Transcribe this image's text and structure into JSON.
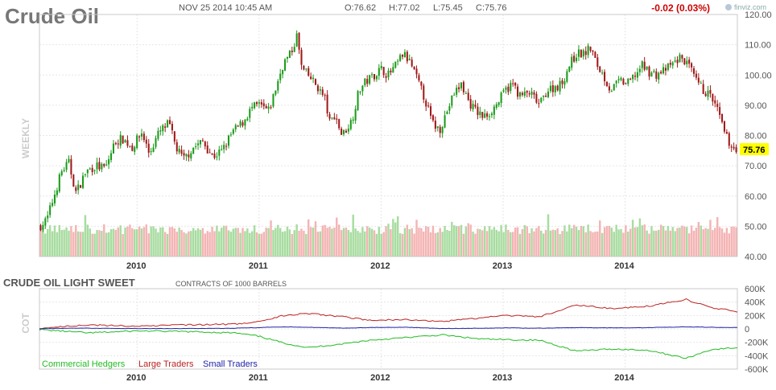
{
  "header": {
    "title": "Crude Oil",
    "datetime": "NOV 25 2014 10:45 AM",
    "open": "O:76.62",
    "high": "H:77.02",
    "low": "L:75.45",
    "close": "C:75.76",
    "change": "-0.02 (0.03%)",
    "logo_text": "finviz.com"
  },
  "side_labels": {
    "price_panel": "WEEKLY",
    "cot_panel": "COT"
  },
  "cot_header": {
    "title": "CRUDE OIL LIGHT SWEET",
    "subtitle": "CONTRACTS OF 1000 BARRELS"
  },
  "current_price_label": "75.76",
  "colors": {
    "up_candle": "#1a9a1a",
    "down_candle": "#a01818",
    "up_volume": "#a8dca0",
    "down_volume": "#f4b4b4",
    "commercial": "#22bb22",
    "large": "#bb2222",
    "small": "#2222aa",
    "price_tag": "#ffff00",
    "change_text": "#cc0000"
  },
  "chart_data": [
    {
      "type": "candlestick",
      "name": "price",
      "ylim": [
        40,
        120
      ],
      "y_ticks": [
        "120.00",
        "110.00",
        "100.00",
        "90.00",
        "80.00",
        "70.00",
        "60.00",
        "50.00",
        "40.00"
      ],
      "x_labels": [
        "2010",
        "2011",
        "2012",
        "2013",
        "2014"
      ],
      "x_range": [
        2009.2,
        2014.92
      ],
      "price_anchors": [
        [
          2009.2,
          50
        ],
        [
          2009.26,
          52
        ],
        [
          2009.32,
          60
        ],
        [
          2009.38,
          68
        ],
        [
          2009.44,
          71
        ],
        [
          2009.5,
          61
        ],
        [
          2009.58,
          68
        ],
        [
          2009.66,
          70
        ],
        [
          2009.74,
          69
        ],
        [
          2009.82,
          78
        ],
        [
          2009.88,
          79
        ],
        [
          2009.96,
          76
        ],
        [
          2010.04,
          81
        ],
        [
          2010.1,
          74
        ],
        [
          2010.18,
          81
        ],
        [
          2010.26,
          84
        ],
        [
          2010.32,
          76
        ],
        [
          2010.38,
          72
        ],
        [
          2010.46,
          76
        ],
        [
          2010.54,
          78
        ],
        [
          2010.62,
          73
        ],
        [
          2010.7,
          75
        ],
        [
          2010.78,
          81
        ],
        [
          2010.86,
          84
        ],
        [
          2010.94,
          89
        ],
        [
          2011.0,
          90
        ],
        [
          2011.08,
          88
        ],
        [
          2011.14,
          96
        ],
        [
          2011.2,
          104
        ],
        [
          2011.26,
          107
        ],
        [
          2011.31,
          113
        ],
        [
          2011.35,
          102
        ],
        [
          2011.42,
          99
        ],
        [
          2011.48,
          96
        ],
        [
          2011.54,
          92
        ],
        [
          2011.58,
          84
        ],
        [
          2011.62,
          87
        ],
        [
          2011.68,
          80
        ],
        [
          2011.76,
          85
        ],
        [
          2011.82,
          95
        ],
        [
          2011.88,
          98
        ],
        [
          2011.94,
          100
        ],
        [
          2012.0,
          102
        ],
        [
          2012.06,
          100
        ],
        [
          2012.12,
          103
        ],
        [
          2012.18,
          107
        ],
        [
          2012.24,
          104
        ],
        [
          2012.3,
          98
        ],
        [
          2012.36,
          92
        ],
        [
          2012.42,
          84
        ],
        [
          2012.48,
          82
        ],
        [
          2012.54,
          88
        ],
        [
          2012.6,
          94
        ],
        [
          2012.66,
          97
        ],
        [
          2012.72,
          91
        ],
        [
          2012.78,
          88
        ],
        [
          2012.84,
          86
        ],
        [
          2012.9,
          88
        ],
        [
          2012.96,
          91
        ],
        [
          2013.02,
          95
        ],
        [
          2013.08,
          97
        ],
        [
          2013.14,
          93
        ],
        [
          2013.22,
          94
        ],
        [
          2013.3,
          90
        ],
        [
          2013.36,
          95
        ],
        [
          2013.42,
          96
        ],
        [
          2013.48,
          97
        ],
        [
          2013.54,
          103
        ],
        [
          2013.6,
          107
        ],
        [
          2013.66,
          107
        ],
        [
          2013.72,
          109
        ],
        [
          2013.76,
          104
        ],
        [
          2013.82,
          100
        ],
        [
          2013.88,
          95
        ],
        [
          2013.96,
          98
        ],
        [
          2014.02,
          97
        ],
        [
          2014.08,
          100
        ],
        [
          2014.14,
          103
        ],
        [
          2014.2,
          101
        ],
        [
          2014.26,
          100
        ],
        [
          2014.34,
          102
        ],
        [
          2014.4,
          104
        ],
        [
          2014.46,
          106
        ],
        [
          2014.52,
          103
        ],
        [
          2014.58,
          98
        ],
        [
          2014.64,
          95
        ],
        [
          2014.7,
          93
        ],
        [
          2014.76,
          88
        ],
        [
          2014.82,
          80
        ],
        [
          2014.88,
          76
        ],
        [
          2014.92,
          75.76
        ]
      ]
    },
    {
      "type": "line",
      "name": "cot",
      "title": "CRUDE OIL LIGHT SWEET",
      "subtitle": "CONTRACTS OF 1000 BARRELS",
      "ylim": [
        -600000,
        600000
      ],
      "y_ticks": [
        "600K",
        "400K",
        "200K",
        "0",
        "-200K",
        "-400K",
        "-600K"
      ],
      "x_labels": [
        "2010",
        "2011",
        "2012",
        "2013",
        "2014"
      ],
      "x_range": [
        2009.2,
        2014.92
      ],
      "legend_position": "bottom-left",
      "series": [
        {
          "name": "Commercial Hedgers",
          "anchors": [
            [
              2009.2,
              -10000
            ],
            [
              2009.6,
              -60000
            ],
            [
              2010.0,
              -30000
            ],
            [
              2010.4,
              -40000
            ],
            [
              2010.8,
              -60000
            ],
            [
              2011.0,
              -110000
            ],
            [
              2011.2,
              -210000
            ],
            [
              2011.4,
              -280000
            ],
            [
              2011.7,
              -220000
            ],
            [
              2011.9,
              -170000
            ],
            [
              2012.2,
              -130000
            ],
            [
              2012.5,
              -90000
            ],
            [
              2012.8,
              -150000
            ],
            [
              2013.0,
              -160000
            ],
            [
              2013.3,
              -170000
            ],
            [
              2013.6,
              -330000
            ],
            [
              2013.9,
              -300000
            ],
            [
              2014.2,
              -320000
            ],
            [
              2014.5,
              -440000
            ],
            [
              2014.7,
              -310000
            ],
            [
              2014.92,
              -280000
            ]
          ]
        },
        {
          "name": "Large Traders",
          "anchors": [
            [
              2009.2,
              10000
            ],
            [
              2009.6,
              60000
            ],
            [
              2010.0,
              40000
            ],
            [
              2010.4,
              60000
            ],
            [
              2010.8,
              70000
            ],
            [
              2011.0,
              110000
            ],
            [
              2011.2,
              200000
            ],
            [
              2011.4,
              230000
            ],
            [
              2011.7,
              180000
            ],
            [
              2011.9,
              130000
            ],
            [
              2012.2,
              140000
            ],
            [
              2012.5,
              110000
            ],
            [
              2012.8,
              160000
            ],
            [
              2013.0,
              200000
            ],
            [
              2013.3,
              180000
            ],
            [
              2013.6,
              360000
            ],
            [
              2013.9,
              300000
            ],
            [
              2014.2,
              340000
            ],
            [
              2014.5,
              440000
            ],
            [
              2014.7,
              320000
            ],
            [
              2014.92,
              260000
            ]
          ]
        },
        {
          "name": "Small Traders",
          "anchors": [
            [
              2009.2,
              5000
            ],
            [
              2009.6,
              10000
            ],
            [
              2010.0,
              5000
            ],
            [
              2010.4,
              5000
            ],
            [
              2010.8,
              10000
            ],
            [
              2011.0,
              20000
            ],
            [
              2011.2,
              30000
            ],
            [
              2011.4,
              25000
            ],
            [
              2011.7,
              10000
            ],
            [
              2011.9,
              20000
            ],
            [
              2012.2,
              25000
            ],
            [
              2012.5,
              5000
            ],
            [
              2012.8,
              10000
            ],
            [
              2013.0,
              15000
            ],
            [
              2013.3,
              10000
            ],
            [
              2013.6,
              20000
            ],
            [
              2013.9,
              15000
            ],
            [
              2014.2,
              20000
            ],
            [
              2014.5,
              30000
            ],
            [
              2014.7,
              25000
            ],
            [
              2014.92,
              20000
            ]
          ]
        }
      ]
    }
  ]
}
